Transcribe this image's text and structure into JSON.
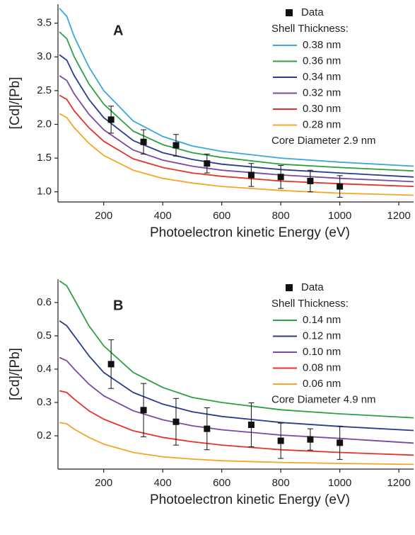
{
  "chart_data": [
    {
      "type": "line",
      "label": "A",
      "xlabel": "Photoelectron kinetic Energy (eV)",
      "ylabel": "[Cd]/[Pb]",
      "xlim": [
        45,
        1250
      ],
      "ylim": [
        0.85,
        3.78
      ],
      "xticks": [
        200,
        400,
        600,
        800,
        1000,
        1200
      ],
      "yticks": [
        {
          "value": 1,
          "label": "1.0"
        },
        1.5,
        {
          "value": 2,
          "label": "2.0"
        },
        2.5,
        {
          "value": 3,
          "label": "3.0"
        },
        3.5
      ],
      "legend_title": "Shell Thickness:",
      "annotation": "Core Diameter 2.9 nm",
      "x": [
        50,
        75,
        100,
        150,
        200,
        300,
        400,
        500,
        600,
        800,
        1000,
        1250
      ],
      "series": [
        {
          "name": "0.38 nm",
          "color": "#3ba7db",
          "values": [
            3.72,
            3.6,
            3.3,
            2.85,
            2.5,
            2.05,
            1.82,
            1.68,
            1.6,
            1.5,
            1.44,
            1.38
          ]
        },
        {
          "name": "0.36 nm",
          "color": "#2ca043",
          "values": [
            3.37,
            3.27,
            3.0,
            2.6,
            2.3,
            1.9,
            1.7,
            1.58,
            1.51,
            1.41,
            1.36,
            1.31
          ]
        },
        {
          "name": "0.34 nm",
          "color": "#2b3b8f",
          "values": [
            3.03,
            2.95,
            2.72,
            2.37,
            2.1,
            1.76,
            1.58,
            1.48,
            1.41,
            1.33,
            1.28,
            1.22
          ]
        },
        {
          "name": "0.32 nm",
          "color": "#7a4aa0",
          "values": [
            2.72,
            2.65,
            2.45,
            2.15,
            1.92,
            1.62,
            1.47,
            1.38,
            1.32,
            1.25,
            1.2,
            1.15
          ]
        },
        {
          "name": "0.30 nm",
          "color": "#e8312a",
          "values": [
            2.43,
            2.37,
            2.2,
            1.95,
            1.75,
            1.49,
            1.36,
            1.28,
            1.23,
            1.16,
            1.12,
            1.08
          ]
        },
        {
          "name": "0.28 nm",
          "color": "#f5a623",
          "values": [
            2.16,
            2.1,
            1.95,
            1.72,
            1.54,
            1.32,
            1.2,
            1.13,
            1.08,
            1.02,
            0.98,
            0.95
          ]
        }
      ],
      "data": {
        "name": "Data",
        "color": "#111111",
        "x": [
          225,
          335,
          445,
          550,
          700,
          800,
          900,
          1000
        ],
        "values": [
          2.07,
          1.74,
          1.69,
          1.42,
          1.25,
          1.22,
          1.16,
          1.08
        ],
        "errors": [
          0.2,
          0.18,
          0.16,
          0.14,
          0.17,
          0.17,
          0.16,
          0.16
        ]
      }
    },
    {
      "type": "line",
      "label": "B",
      "xlabel": "Photoelectron kinetic Energy (eV)",
      "ylabel": "[Cd]/[Pb]",
      "xlim": [
        45,
        1250
      ],
      "ylim": [
        0.1,
        0.67
      ],
      "xticks": [
        200,
        400,
        600,
        800,
        1000,
        1200
      ],
      "yticks": [
        0.2,
        0.3,
        0.4,
        0.5,
        0.6
      ],
      "legend_title": "Shell Thickness:",
      "annotation": "Core Diameter 4.9 nm",
      "x": [
        50,
        75,
        100,
        150,
        200,
        300,
        400,
        500,
        600,
        800,
        1000,
        1250
      ],
      "series": [
        {
          "name": "0.14 nm",
          "color": "#2ca043",
          "values": [
            0.665,
            0.65,
            0.61,
            0.53,
            0.47,
            0.39,
            0.345,
            0.315,
            0.3,
            0.278,
            0.266,
            0.254
          ]
        },
        {
          "name": "0.12 nm",
          "color": "#2b3b8f",
          "values": [
            0.545,
            0.53,
            0.5,
            0.44,
            0.39,
            0.33,
            0.295,
            0.272,
            0.258,
            0.24,
            0.228,
            0.216
          ]
        },
        {
          "name": "0.10 nm",
          "color": "#7a4aa0",
          "values": [
            0.435,
            0.425,
            0.4,
            0.355,
            0.32,
            0.275,
            0.248,
            0.23,
            0.218,
            0.202,
            0.192,
            0.178
          ]
        },
        {
          "name": "0.08 nm",
          "color": "#e8312a",
          "values": [
            0.335,
            0.33,
            0.31,
            0.275,
            0.25,
            0.215,
            0.195,
            0.182,
            0.172,
            0.158,
            0.15,
            0.142
          ]
        },
        {
          "name": "0.06 nm",
          "color": "#f5a623",
          "values": [
            0.24,
            0.236,
            0.22,
            0.195,
            0.175,
            0.15,
            0.137,
            0.13,
            0.125,
            0.12,
            0.117,
            0.114
          ]
        }
      ],
      "data": {
        "name": "Data",
        "color": "#111111",
        "x": [
          225,
          335,
          445,
          550,
          700,
          800,
          900,
          1000
        ],
        "values": [
          0.415,
          0.277,
          0.242,
          0.221,
          0.233,
          0.185,
          0.189,
          0.179
        ],
        "errors": [
          0.073,
          0.08,
          0.07,
          0.063,
          0.066,
          0.053,
          0.032,
          0.05
        ]
      }
    }
  ]
}
